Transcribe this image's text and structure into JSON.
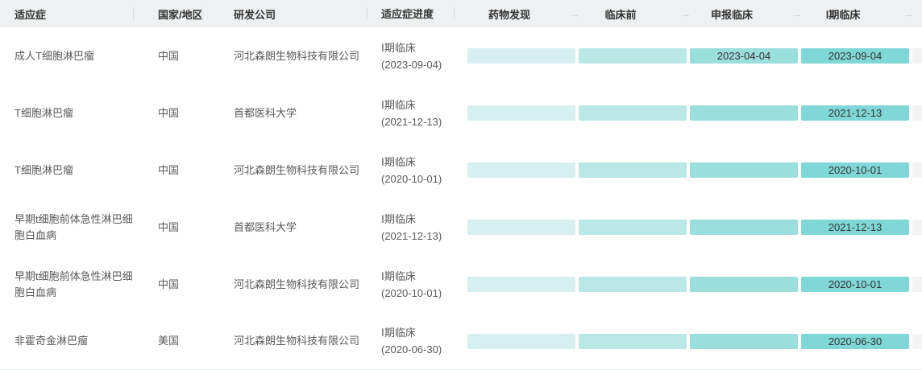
{
  "table": {
    "columns": [
      {
        "label": "适应症"
      },
      {
        "label": "国家/地区"
      },
      {
        "label": "研发公司"
      },
      {
        "label": "适应症进度"
      }
    ],
    "stage_columns": [
      "药物发现",
      "临床前",
      "申报临床",
      "Ⅰ期临床"
    ],
    "icons": {
      "arrow_right": "→"
    },
    "rows": [
      {
        "indication": "成人T细胞淋巴瘤",
        "country": "中国",
        "company": "河北森朗生物科技有限公司",
        "progress_stage": "Ⅰ期临床",
        "progress_date": "(2023-09-04)",
        "stages": [
          "",
          "",
          "2023-04-04",
          "2023-09-04"
        ]
      },
      {
        "indication": "T细胞淋巴瘤",
        "country": "中国",
        "company": "首都医科大学",
        "progress_stage": "Ⅰ期临床",
        "progress_date": "(2021-12-13)",
        "stages": [
          "",
          "",
          "",
          "2021-12-13"
        ]
      },
      {
        "indication": "T细胞淋巴瘤",
        "country": "中国",
        "company": "河北森朗生物科技有限公司",
        "progress_stage": "Ⅰ期临床",
        "progress_date": "(2020-10-01)",
        "stages": [
          "",
          "",
          "",
          "2020-10-01"
        ]
      },
      {
        "indication": "早期t细胞前体急性淋巴细胞白血病",
        "country": "中国",
        "company": "首都医科大学",
        "progress_stage": "Ⅰ期临床",
        "progress_date": "(2021-12-13)",
        "stages": [
          "",
          "",
          "",
          "2021-12-13"
        ]
      },
      {
        "indication": "早期t细胞前体急性淋巴细胞白血病",
        "country": "中国",
        "company": "河北森朗生物科技有限公司",
        "progress_stage": "Ⅰ期临床",
        "progress_date": "(2020-10-01)",
        "stages": [
          "",
          "",
          "",
          "2020-10-01"
        ]
      },
      {
        "indication": "非霍奇金淋巴瘤",
        "country": "美国",
        "company": "河北森朗生物科技有限公司",
        "progress_stage": "Ⅰ期临床",
        "progress_date": "(2020-06-30)",
        "stages": [
          "",
          "",
          "",
          "2020-06-30"
        ]
      }
    ],
    "colors": {
      "header_bg": "#eef0f1",
      "header_text": "#333333",
      "body_text": "#595959",
      "date_text": "#333333",
      "separator": "#d8dce0",
      "arrow": "#c9ced4",
      "bottom_border": "#e7e9eb",
      "stage_1": "#d5f0ef",
      "stage_2": "#b9e8e6",
      "stage_3": "#9adfdc",
      "stage_4": "#7fd8d7",
      "stage_next": "#f3f3f4"
    }
  }
}
